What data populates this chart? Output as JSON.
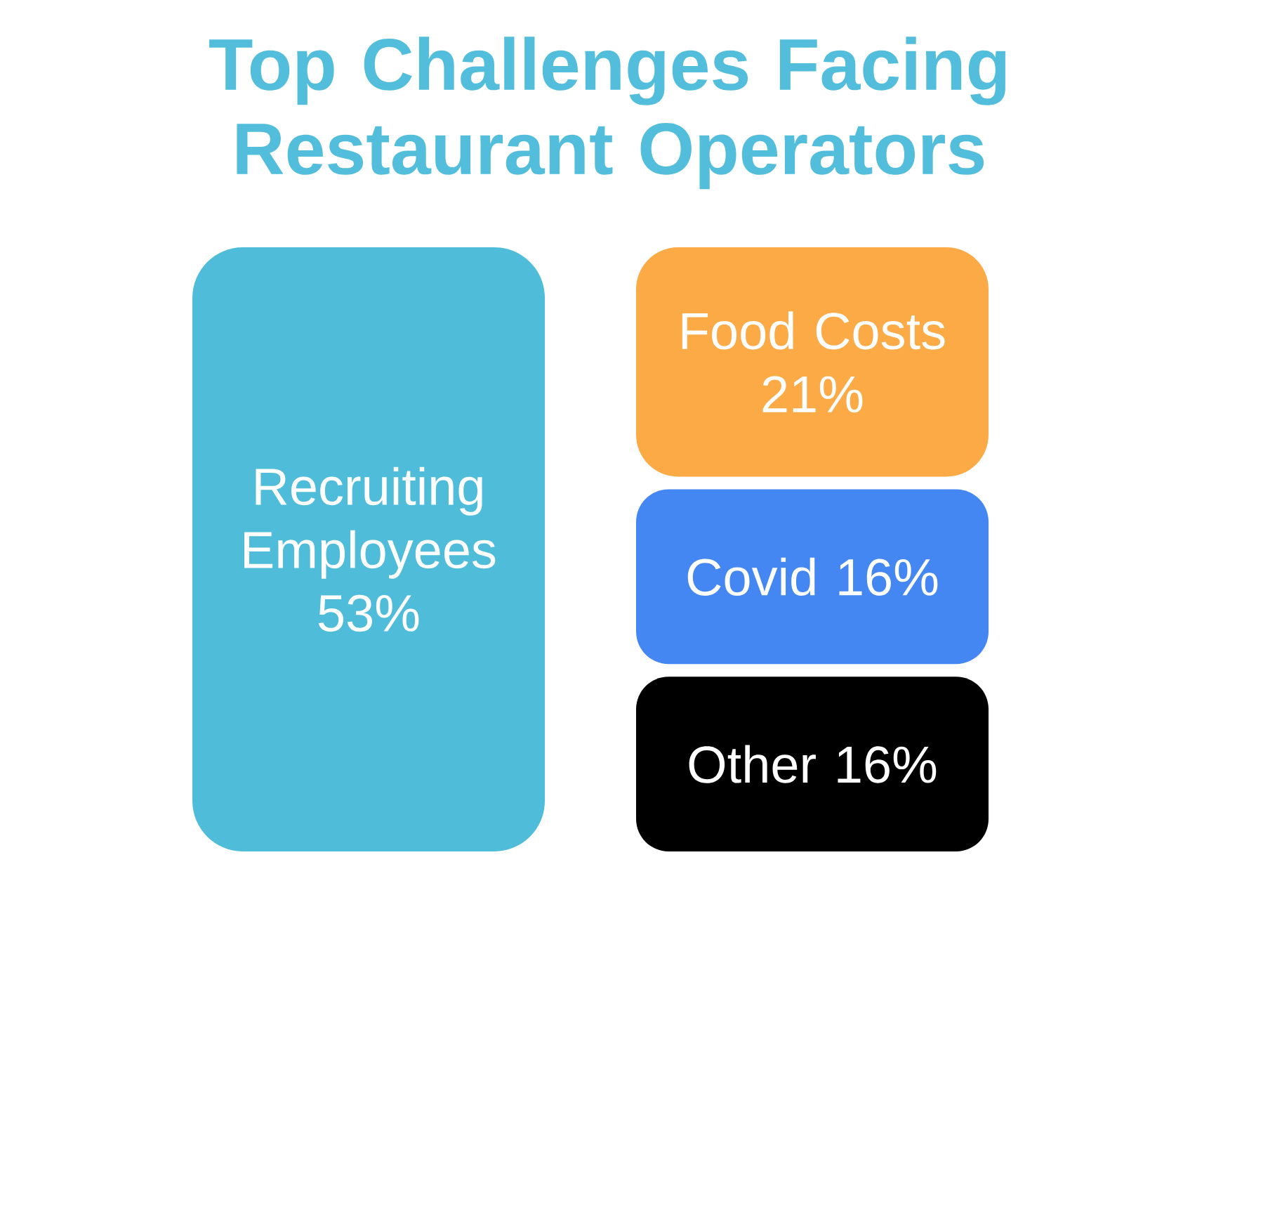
{
  "chart_data": {
    "type": "other",
    "title": "Top Challenges Facing Restaurant Operators",
    "categories": [
      "Recruiting Employees",
      "Food Costs",
      "Covid",
      "Other"
    ],
    "values": [
      53,
      21,
      16,
      16
    ],
    "value_labels": [
      "53%",
      "21%",
      "16%",
      "16%"
    ],
    "colors": [
      "#4fbdd9",
      "#fbaa45",
      "#4587f2",
      "#000000"
    ]
  }
}
